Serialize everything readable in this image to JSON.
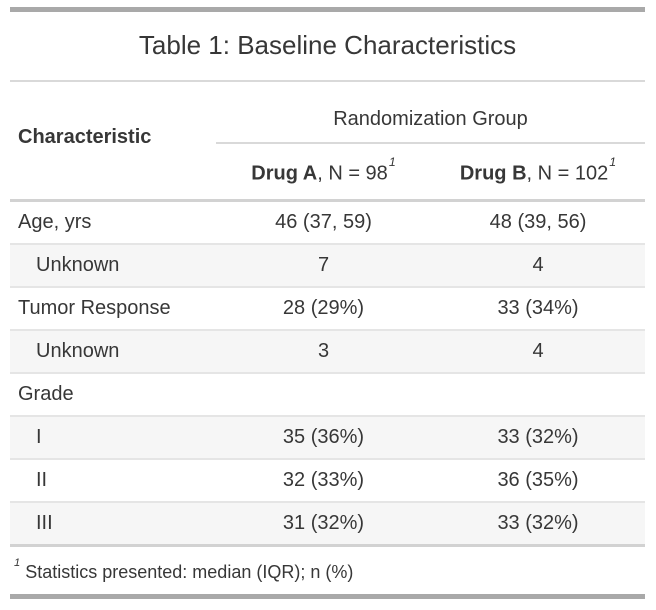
{
  "table": {
    "title": "Table 1: Baseline Characteristics",
    "header": {
      "stub_label": "Characteristic",
      "spanner_label": "Randomization Group",
      "columns": [
        {
          "name_bold": "Drug A",
          "rest": ", N = 98",
          "footnote_mark": "1"
        },
        {
          "name_bold": "Drug B",
          "rest": ", N = 102",
          "footnote_mark": "1"
        }
      ]
    },
    "rows": [
      {
        "label": "Age, yrs",
        "drug_a": "46 (37, 59)",
        "drug_b": "48 (39, 56)"
      },
      {
        "label": "Unknown",
        "drug_a": "7",
        "drug_b": "4"
      },
      {
        "label": "Tumor Response",
        "drug_a": "28 (29%)",
        "drug_b": "33 (34%)"
      },
      {
        "label": "Unknown",
        "drug_a": "3",
        "drug_b": "4"
      },
      {
        "label": "Grade",
        "drug_a": "",
        "drug_b": ""
      },
      {
        "label": "I",
        "drug_a": "35 (36%)",
        "drug_b": "33 (32%)"
      },
      {
        "label": "II",
        "drug_a": "32 (33%)",
        "drug_b": "36 (35%)"
      },
      {
        "label": "III",
        "drug_a": "31 (32%)",
        "drug_b": "33 (32%)"
      }
    ],
    "footnote": {
      "mark": "1",
      "text": "Statistics presented: median (IQR); n (%)"
    },
    "colors": {
      "text": "#373737",
      "outer_bar": "#a9a9a9",
      "heavy_rule": "#d2d2d2",
      "light_rule": "#d9d9d9",
      "row_rule": "#e5e5e5",
      "stripe_bg": "#f6f6f6",
      "background": "#ffffff"
    }
  }
}
